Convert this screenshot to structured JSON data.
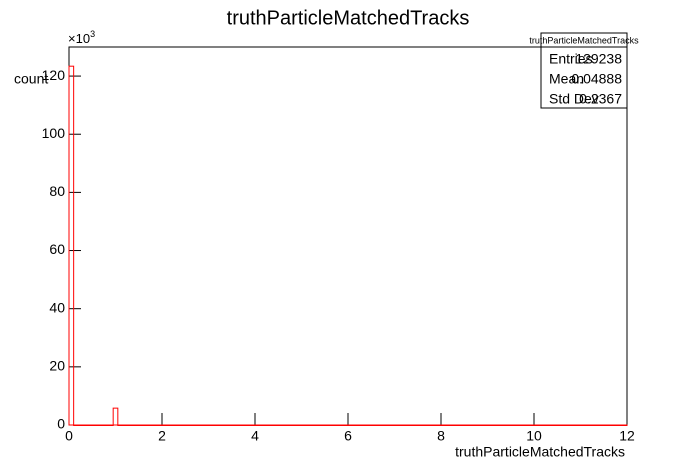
{
  "chart_data": {
    "type": "histogram",
    "title": "truthParticleMatchedTracks",
    "x_label": "truthParticleMatchedTracks",
    "y_label": "count",
    "y_scale_base": "×10",
    "y_scale_exponent": "3",
    "bins": [
      0,
      0.1,
      0.95,
      1.05,
      12
    ],
    "values": [
      123.4,
      0,
      5.8,
      0
    ],
    "color": "#ff0000",
    "xlim": [
      0,
      12
    ],
    "xticks": [
      0,
      2,
      4,
      6,
      8,
      10,
      12
    ],
    "ylim": [
      0,
      130
    ],
    "yticks": [
      0,
      20,
      40,
      60,
      80,
      100,
      120
    ],
    "stats": {
      "title": "truthParticleMatchedTracks",
      "rows": [
        [
          "Entries",
          129238
        ],
        [
          "Mean",
          0.04888
        ],
        [
          "Std Dev",
          0.2367
        ]
      ]
    }
  }
}
